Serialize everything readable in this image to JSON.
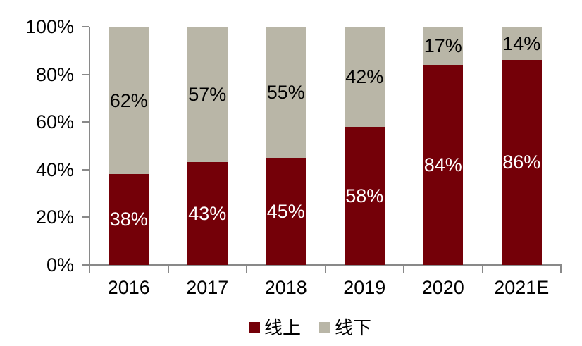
{
  "chart_data": {
    "type": "bar",
    "variant": "stacked-100-percent",
    "categories": [
      "2016",
      "2017",
      "2018",
      "2019",
      "2020",
      "2021E"
    ],
    "series": [
      {
        "name": "线上",
        "color": "#740008",
        "label_text_color": "#FFFFFF",
        "values": [
          38,
          43,
          45,
          58,
          84,
          86
        ],
        "data_labels": [
          "38%",
          "43%",
          "45%",
          "58%",
          "84%",
          "86%"
        ]
      },
      {
        "name": "线下",
        "color": "#B9B6A7",
        "label_text_color": "#000000",
        "values": [
          62,
          57,
          55,
          42,
          17,
          14
        ],
        "data_labels": [
          "62%",
          "57%",
          "55%",
          "42%",
          "17%",
          "14%"
        ]
      }
    ],
    "y_axis": {
      "ticks": [
        "100%",
        "80%",
        "60%",
        "40%",
        "20%",
        "0%"
      ],
      "min": 0,
      "max": 100
    },
    "x_axis": {
      "label": ""
    },
    "title": "",
    "legend": {
      "position": "bottom",
      "entries": [
        "线上",
        "线下"
      ]
    },
    "grid": false,
    "axis_color": "#898989",
    "background_color": "#FFFFFF"
  }
}
